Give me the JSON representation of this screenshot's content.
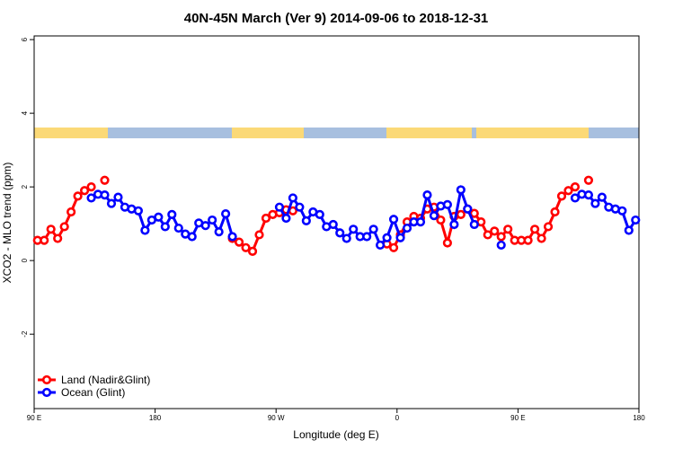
{
  "chart_data": {
    "type": "line",
    "title": "40N-45N March (Ver 9)   2014-09-06 to 2018-12-31",
    "x_label": "Longitude (deg E)",
    "y_label": "XCO2 - MLO trend (ppm)",
    "x": [
      -267.5,
      -262.5,
      -257.5,
      -252.5,
      -247.5,
      -242.5,
      -237.5,
      -232.5,
      -227.5,
      -222.5,
      -217.5,
      -212.5,
      -207.5,
      -202.5,
      -197.5,
      -192.5,
      -187.5,
      -182.5,
      -177.5,
      -172.5,
      -167.5,
      -162.5,
      -157.5,
      -152.5,
      -147.5,
      -142.5,
      -137.5,
      -132.5,
      -127.5,
      -122.5,
      -117.5,
      -112.5,
      -107.5,
      -102.5,
      -97.5,
      -92.5,
      -87.5,
      -82.5,
      -77.5,
      -72.5,
      -67.5,
      -62.5,
      -57.5,
      -52.5,
      -47.5,
      -42.5,
      -37.5,
      -32.5,
      -27.5,
      -22.5,
      -17.5,
      -12.5,
      -7.5,
      -2.5,
      2.5,
      7.5,
      12.5,
      17.5,
      22.5,
      27.5,
      32.5,
      37.5,
      42.5,
      47.5,
      52.5,
      57.5,
      62.5,
      67.5,
      72.5,
      77.5,
      82.5,
      87.5,
      92.5,
      97.5,
      102.5,
      107.5,
      112.5,
      117.5,
      122.5,
      127.5,
      132.5,
      137.5,
      142.5,
      147.5,
      152.5,
      157.5,
      162.5,
      167.5,
      172.5,
      177.5
    ],
    "series": [
      {
        "name": "Land (Nadir&Glint)",
        "color": "#ff0000",
        "values": [
          0.55,
          0.55,
          0.85,
          0.6,
          0.92,
          1.32,
          1.75,
          1.9,
          2.0,
          null,
          2.18,
          null,
          null,
          null,
          null,
          null,
          null,
          null,
          null,
          null,
          null,
          null,
          null,
          null,
          null,
          null,
          null,
          null,
          null,
          0.6,
          0.5,
          0.35,
          0.25,
          0.7,
          1.15,
          1.25,
          1.3,
          1.38,
          1.35,
          null,
          null,
          null,
          null,
          null,
          null,
          null,
          null,
          null,
          null,
          null,
          null,
          null,
          0.45,
          0.35,
          0.7,
          1.05,
          1.2,
          1.15,
          1.4,
          1.45,
          1.1,
          0.48,
          1.2,
          1.25,
          1.4,
          1.28,
          1.05,
          0.7,
          0.8,
          0.65,
          0.85,
          0.55,
          0.55,
          0.55,
          0.85,
          0.6,
          0.92,
          1.32,
          1.75,
          1.9,
          2.0,
          null,
          2.18,
          null,
          null,
          null,
          null,
          null,
          null,
          null
        ]
      },
      {
        "name": "Ocean (Glint)",
        "color": "#0000ff",
        "values": [
          null,
          null,
          null,
          null,
          null,
          null,
          null,
          null,
          1.7,
          1.8,
          1.78,
          1.55,
          1.72,
          1.45,
          1.4,
          1.35,
          0.82,
          1.1,
          1.18,
          0.92,
          1.25,
          0.88,
          0.72,
          0.65,
          1.02,
          0.95,
          1.1,
          0.78,
          1.27,
          0.65,
          null,
          null,
          null,
          null,
          null,
          null,
          1.45,
          1.15,
          1.7,
          1.45,
          1.08,
          1.32,
          1.25,
          0.92,
          0.98,
          0.75,
          0.6,
          0.85,
          0.65,
          0.65,
          0.85,
          0.42,
          0.62,
          1.12,
          0.62,
          0.88,
          1.05,
          1.05,
          1.78,
          1.22,
          1.48,
          1.52,
          0.98,
          1.92,
          1.4,
          0.98,
          null,
          null,
          null,
          0.42,
          null,
          null,
          null,
          null,
          null,
          null,
          null,
          null,
          null,
          null,
          1.7,
          1.8,
          1.78,
          1.55,
          1.72,
          1.45,
          1.4,
          1.35,
          0.82,
          1.1
        ]
      }
    ],
    "xlim": [
      -270,
      180
    ],
    "xticks": [
      {
        "value": -270,
        "label": "90 E"
      },
      {
        "value": -180,
        "label": "180"
      },
      {
        "value": -90,
        "label": "90 W"
      },
      0,
      {
        "value": 90,
        "label": "90 E"
      },
      {
        "value": 180,
        "label": "180"
      }
    ],
    "ylim": [
      -4.02,
      6.1
    ],
    "yticks": [
      -2,
      0,
      2,
      4,
      6
    ],
    "legend": "bottom-left"
  }
}
